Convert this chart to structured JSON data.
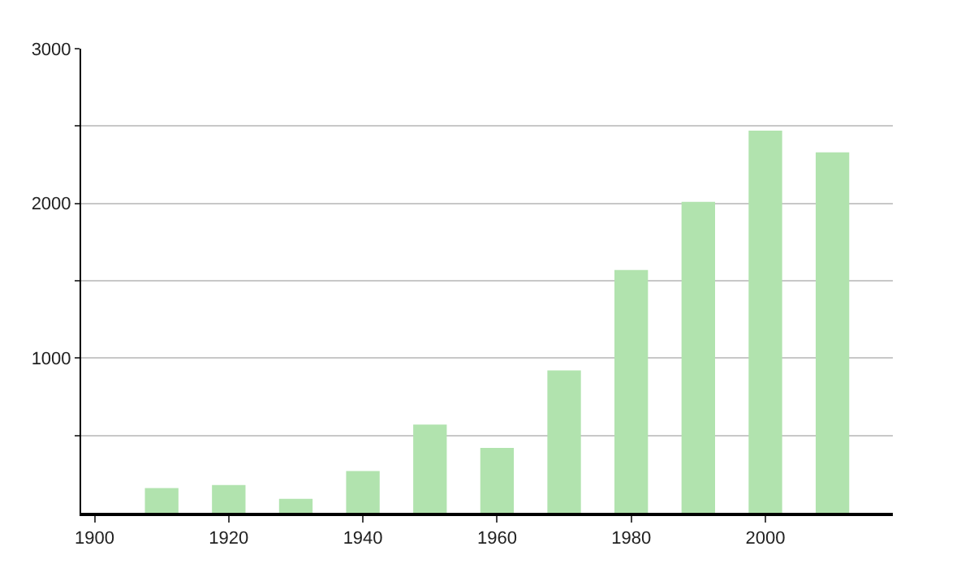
{
  "chart_data": {
    "type": "bar",
    "x": [
      1910,
      1920,
      1930,
      1940,
      1950,
      1960,
      1970,
      1980,
      1990,
      2000,
      2010
    ],
    "values": [
      160,
      180,
      90,
      270,
      570,
      420,
      920,
      1570,
      2010,
      2470,
      2330
    ],
    "color": "#b1e3ae",
    "xlim": [
      1898,
      2019
    ],
    "xticks": [
      1900,
      1920,
      1940,
      1960,
      1980,
      2000
    ],
    "ylim": [
      0,
      3000
    ],
    "yticks": [
      {
        "value": 500,
        "label": null
      },
      1000,
      {
        "value": 1500,
        "label": null
      },
      2000,
      {
        "value": 2500,
        "label": null
      },
      3000
    ],
    "grid": "y"
  }
}
